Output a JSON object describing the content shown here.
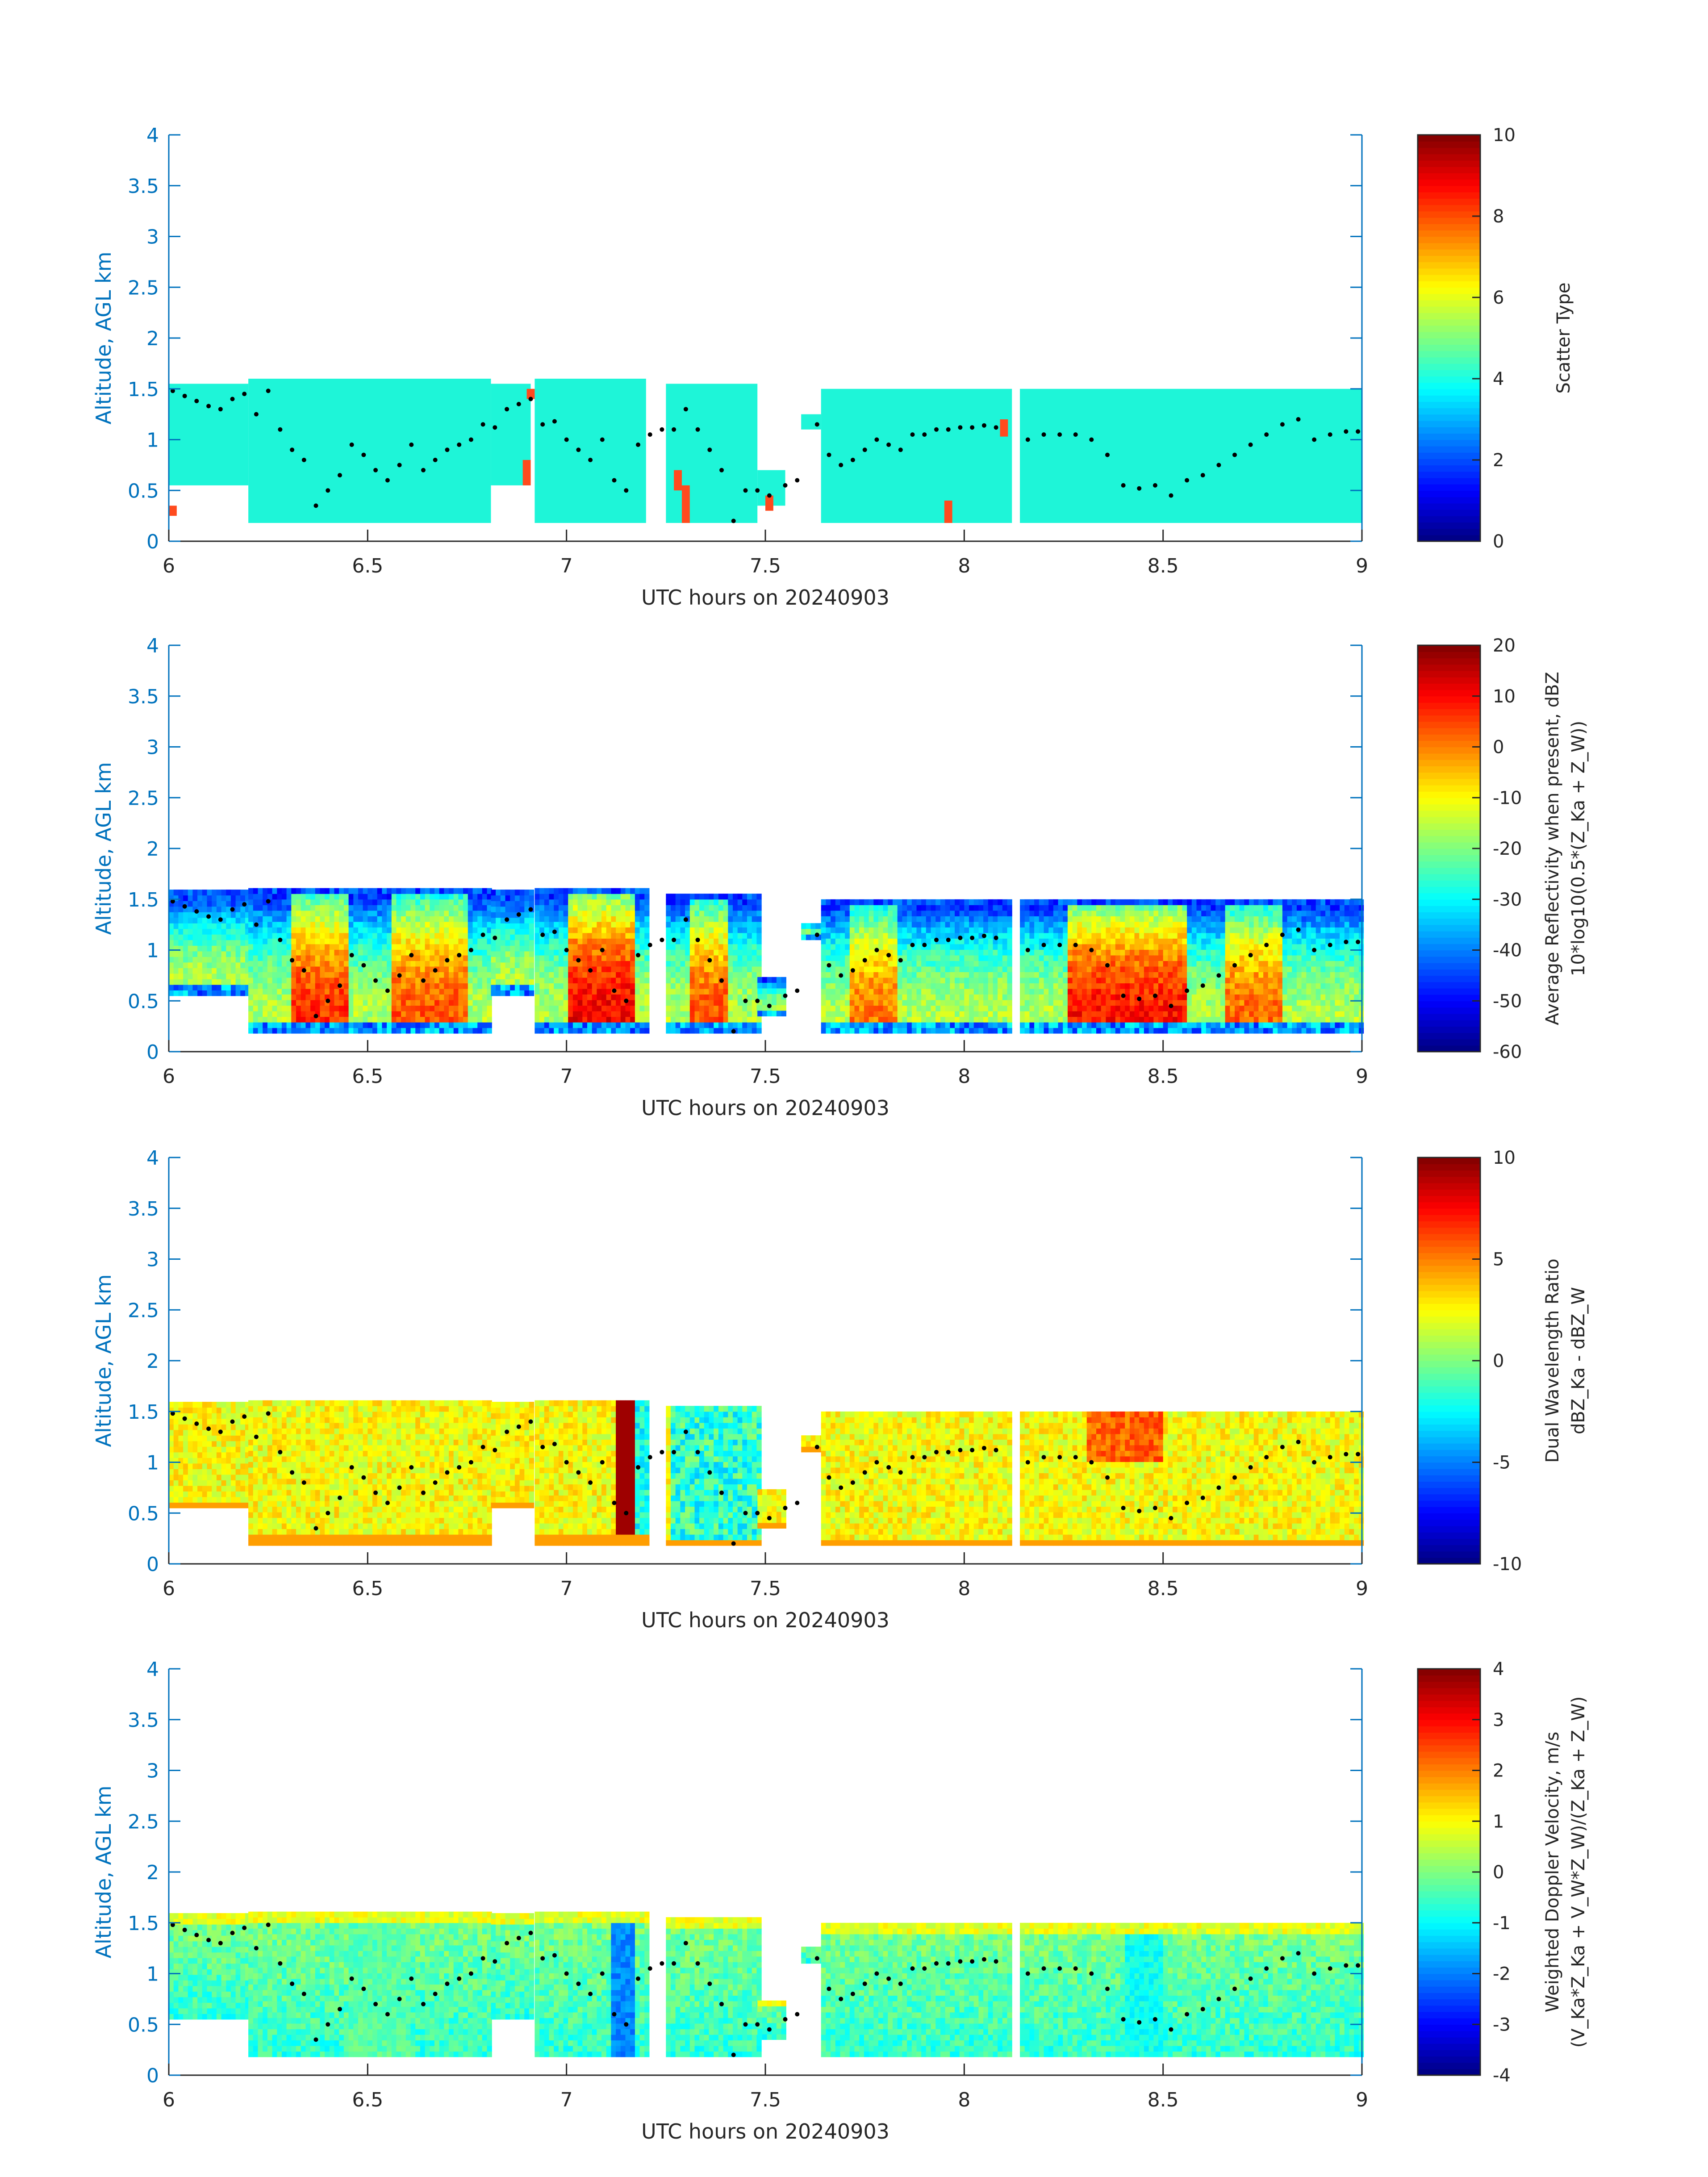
{
  "chart_data": [
    {
      "type": "heatmap",
      "xlabel": "UTC hours on 20240903",
      "ylabel": "Altitude, AGL km",
      "xlim": [
        6,
        9
      ],
      "ylim": [
        0,
        4
      ],
      "xticks": [
        "6",
        "6.5",
        "7",
        "7.5",
        "8",
        "8.5",
        "9"
      ],
      "yticks": [
        "0",
        "0.5",
        "1",
        "1.5",
        "2",
        "2.5",
        "3",
        "3.5",
        "4"
      ],
      "colorbar": {
        "label": [
          "Scatter Type"
        ],
        "limits": [
          0,
          10
        ],
        "ticks": [
          "0",
          "2",
          "4",
          "6",
          "8",
          "10"
        ]
      },
      "field": "scatter"
    },
    {
      "type": "heatmap",
      "xlabel": "UTC hours on 20240903",
      "ylabel": "Altitude, AGL km",
      "xlim": [
        6,
        9
      ],
      "ylim": [
        0,
        4
      ],
      "xticks": [
        "6",
        "6.5",
        "7",
        "7.5",
        "8",
        "8.5",
        "9"
      ],
      "yticks": [
        "0",
        "0.5",
        "1",
        "1.5",
        "2",
        "2.5",
        "3",
        "3.5",
        "4"
      ],
      "colorbar": {
        "label": [
          "Average Reflectivity when present, dBZ",
          "10*log10(0.5*(Z_Ka + Z_W))"
        ],
        "limits": [
          -60,
          20
        ],
        "ticks": [
          "-60",
          "-50",
          "-40",
          "-30",
          "-20",
          "-10",
          "0",
          "10",
          "20"
        ]
      },
      "field": "reflectivity"
    },
    {
      "type": "heatmap",
      "xlabel": "UTC hours on 20240903",
      "ylabel": "Altitude, AGL km",
      "xlim": [
        6,
        9
      ],
      "ylim": [
        0,
        4
      ],
      "xticks": [
        "6",
        "6.5",
        "7",
        "7.5",
        "8",
        "8.5",
        "9"
      ],
      "yticks": [
        "0",
        "0.5",
        "1",
        "1.5",
        "2",
        "2.5",
        "3",
        "3.5",
        "4"
      ],
      "colorbar": {
        "label": [
          "Dual Wavelength Ratio",
          "dBZ_Ka - dBZ_W"
        ],
        "limits": [
          -10,
          10
        ],
        "ticks": [
          "-10",
          "-5",
          "0",
          "5",
          "10"
        ]
      },
      "field": "dwr"
    },
    {
      "type": "heatmap",
      "xlabel": "UTC hours on 20240903",
      "ylabel": "Altitude, AGL km",
      "xlim": [
        6,
        9
      ],
      "ylim": [
        0,
        4
      ],
      "xticks": [
        "6",
        "6.5",
        "7",
        "7.5",
        "8",
        "8.5",
        "9"
      ],
      "yticks": [
        "0",
        "0.5",
        "1",
        "1.5",
        "2",
        "2.5",
        "3",
        "3.5",
        "4"
      ],
      "colorbar": {
        "label": [
          "Weighted Doppler Velocity, m/s",
          "(V_Ka*Z_Ka + V_W*Z_W)/(Z_Ka + Z_W)"
        ],
        "limits": [
          -4,
          4
        ],
        "ticks": [
          "-4",
          "-3",
          "-2",
          "-1",
          "0",
          "1",
          "2",
          "3",
          "4"
        ]
      },
      "field": "velocity"
    }
  ],
  "cloud_segments": [
    {
      "x0": 6.0,
      "x1": 6.2,
      "base": 0.55,
      "top": 1.55
    },
    {
      "x0": 6.2,
      "x1": 6.81,
      "base": 0.18,
      "top": 1.6
    },
    {
      "x0": 6.81,
      "x1": 6.91,
      "base": 0.55,
      "top": 1.55
    },
    {
      "x0": 6.92,
      "x1": 7.2,
      "base": 0.18,
      "top": 1.6
    },
    {
      "x0": 7.25,
      "x1": 7.48,
      "base": 0.18,
      "top": 1.55
    },
    {
      "x0": 7.48,
      "x1": 7.55,
      "base": 0.35,
      "top": 0.7
    },
    {
      "x0": 7.59,
      "x1": 7.64,
      "base": 1.1,
      "top": 1.25
    },
    {
      "x0": 7.64,
      "x1": 8.12,
      "base": 0.18,
      "top": 1.5
    },
    {
      "x0": 8.14,
      "x1": 9.0,
      "base": 0.18,
      "top": 1.5
    }
  ],
  "cloud_top_dots": [
    [
      6.01,
      1.48
    ],
    [
      6.04,
      1.43
    ],
    [
      6.07,
      1.38
    ],
    [
      6.1,
      1.33
    ],
    [
      6.13,
      1.3
    ],
    [
      6.16,
      1.4
    ],
    [
      6.19,
      1.45
    ],
    [
      6.22,
      1.25
    ],
    [
      6.25,
      1.48
    ],
    [
      6.28,
      1.1
    ],
    [
      6.31,
      0.9
    ],
    [
      6.34,
      0.8
    ],
    [
      6.37,
      0.35
    ],
    [
      6.4,
      0.5
    ],
    [
      6.43,
      0.65
    ],
    [
      6.46,
      0.95
    ],
    [
      6.49,
      0.85
    ],
    [
      6.52,
      0.7
    ],
    [
      6.55,
      0.6
    ],
    [
      6.58,
      0.75
    ],
    [
      6.61,
      0.95
    ],
    [
      6.64,
      0.7
    ],
    [
      6.67,
      0.8
    ],
    [
      6.7,
      0.9
    ],
    [
      6.73,
      0.95
    ],
    [
      6.76,
      1.0
    ],
    [
      6.79,
      1.15
    ],
    [
      6.82,
      1.12
    ],
    [
      6.85,
      1.3
    ],
    [
      6.88,
      1.35
    ],
    [
      6.91,
      1.4
    ],
    [
      6.94,
      1.15
    ],
    [
      6.97,
      1.18
    ],
    [
      7.0,
      1.0
    ],
    [
      7.03,
      0.9
    ],
    [
      7.06,
      0.8
    ],
    [
      7.09,
      1.0
    ],
    [
      7.12,
      0.6
    ],
    [
      7.15,
      0.5
    ],
    [
      7.18,
      0.95
    ],
    [
      7.21,
      1.05
    ],
    [
      7.24,
      1.1
    ],
    [
      7.27,
      1.1
    ],
    [
      7.3,
      1.3
    ],
    [
      7.33,
      1.1
    ],
    [
      7.36,
      0.9
    ],
    [
      7.39,
      0.7
    ],
    [
      7.42,
      0.2
    ],
    [
      7.45,
      0.5
    ],
    [
      7.48,
      0.5
    ],
    [
      7.51,
      0.45
    ],
    [
      7.55,
      0.55
    ],
    [
      7.58,
      0.6
    ],
    [
      7.63,
      1.15
    ],
    [
      7.66,
      0.85
    ],
    [
      7.69,
      0.75
    ],
    [
      7.72,
      0.8
    ],
    [
      7.75,
      0.9
    ],
    [
      7.78,
      1.0
    ],
    [
      7.81,
      0.95
    ],
    [
      7.84,
      0.9
    ],
    [
      7.87,
      1.05
    ],
    [
      7.9,
      1.05
    ],
    [
      7.93,
      1.1
    ],
    [
      7.96,
      1.1
    ],
    [
      7.99,
      1.12
    ],
    [
      8.02,
      1.12
    ],
    [
      8.05,
      1.14
    ],
    [
      8.08,
      1.12
    ],
    [
      8.16,
      1.0
    ],
    [
      8.2,
      1.05
    ],
    [
      8.24,
      1.05
    ],
    [
      8.28,
      1.05
    ],
    [
      8.32,
      1.0
    ],
    [
      8.36,
      0.85
    ],
    [
      8.4,
      0.55
    ],
    [
      8.44,
      0.52
    ],
    [
      8.48,
      0.55
    ],
    [
      8.52,
      0.45
    ],
    [
      8.56,
      0.6
    ],
    [
      8.6,
      0.65
    ],
    [
      8.64,
      0.75
    ],
    [
      8.68,
      0.85
    ],
    [
      8.72,
      0.95
    ],
    [
      8.76,
      1.05
    ],
    [
      8.8,
      1.15
    ],
    [
      8.84,
      1.2
    ],
    [
      8.88,
      1.0
    ],
    [
      8.92,
      1.05
    ],
    [
      8.96,
      1.08
    ],
    [
      8.99,
      1.08
    ]
  ],
  "colors": {
    "axis": "#0072BD",
    "text": "#262626",
    "scatter_fill": "#1EF5D8",
    "scatter_highlight": "#FF4B1E",
    "dots": "#000000"
  }
}
